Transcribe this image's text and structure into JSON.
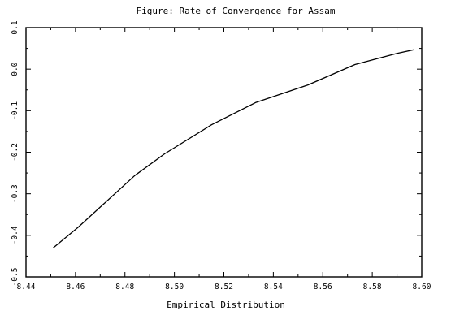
{
  "chart_data": {
    "type": "line",
    "title": "Figure:  Rate of Convergence for Assam",
    "xlabel": "Empirical Distribution",
    "ylabel": "",
    "xlim": [
      8.44,
      8.6
    ],
    "ylim": [
      -0.5,
      0.1
    ],
    "xticks": [
      8.44,
      8.46,
      8.48,
      8.5,
      8.52,
      8.54,
      8.56,
      8.58,
      8.6
    ],
    "xtick_labels": [
      "8.44",
      "8.46",
      "8.48",
      "8.50",
      "8.52",
      "8.54",
      "8.56",
      "8.58",
      "8.60"
    ],
    "yticks": [
      -0.5,
      -0.4,
      -0.3,
      -0.2,
      -0.1,
      0.0,
      0.1
    ],
    "ytick_labels": [
      "-0.5",
      "-0.4",
      "-0.3",
      "-0.2",
      "-0.1",
      "0.0",
      "0.1"
    ],
    "grid": false,
    "legend": "none",
    "series": [
      {
        "x": [
          8.451,
          8.461,
          8.484,
          8.496,
          8.515,
          8.533,
          8.554,
          8.573,
          8.59,
          8.597
        ],
        "y": [
          -0.43,
          -0.381,
          -0.256,
          -0.204,
          -0.134,
          -0.08,
          -0.038,
          0.011,
          0.038,
          0.047
        ],
        "color": "#000000"
      }
    ]
  }
}
